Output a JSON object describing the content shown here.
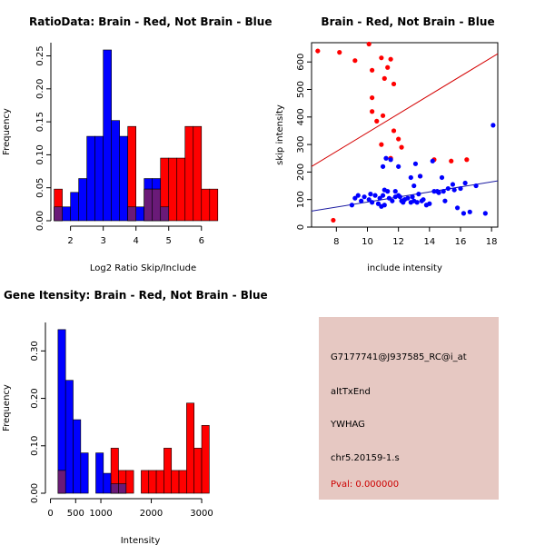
{
  "colors": {
    "red": "#ff0000",
    "blue": "#0000ff",
    "overlap": "#6a1a78",
    "panel_bg": "#e6c8c2",
    "pval": "#cc0000",
    "line_red": "#d40000",
    "line_blue": "#1a1aa0"
  },
  "chart_data": [
    {
      "id": "ratio",
      "type": "histogram",
      "title": "RatioData: Brain - Red, Not Brain - Blue",
      "xlabel": "Log2 Ratio Skip/Include",
      "ylabel": "Frequency",
      "xlim": [
        1.4,
        6.7
      ],
      "ylim": [
        0,
        0.27
      ],
      "x_ticks": [
        2,
        3,
        4,
        5,
        6
      ],
      "y_ticks": [
        0.0,
        0.05,
        0.1,
        0.15,
        0.2,
        0.25
      ],
      "y_tick_labels": [
        "0.00",
        "0.05",
        "0.10",
        "0.15",
        "0.20",
        "0.25"
      ],
      "bin_width": 0.25,
      "series": [
        {
          "name": "Not Brain",
          "color": "blue",
          "bins": [
            [
              1.5,
              0.021
            ],
            [
              1.75,
              0.021
            ],
            [
              2.0,
              0.043
            ],
            [
              2.25,
              0.064
            ],
            [
              2.5,
              0.128
            ],
            [
              2.75,
              0.128
            ],
            [
              3.0,
              0.259
            ],
            [
              3.25,
              0.152
            ],
            [
              3.5,
              0.128
            ],
            [
              3.75,
              0.021
            ],
            [
              4.0,
              0.021
            ],
            [
              4.25,
              0.064
            ],
            [
              4.5,
              0.064
            ],
            [
              4.75,
              0.021
            ]
          ]
        },
        {
          "name": "Brain",
          "color": "red",
          "bins": [
            [
              1.5,
              0.048
            ],
            [
              3.75,
              0.143
            ],
            [
              4.25,
              0.048
            ],
            [
              4.5,
              0.048
            ],
            [
              4.75,
              0.095
            ],
            [
              5.0,
              0.095
            ],
            [
              5.25,
              0.095
            ],
            [
              5.5,
              0.143
            ],
            [
              5.75,
              0.143
            ],
            [
              6.0,
              0.048
            ],
            [
              6.25,
              0.048
            ]
          ]
        }
      ]
    },
    {
      "id": "scatter",
      "type": "scatter",
      "title": "Brain - Red, Not Brain - Blue",
      "xlabel": "include intensity",
      "ylabel": "skip intensity",
      "xlim": [
        6.4,
        18.4
      ],
      "ylim": [
        0,
        670
      ],
      "x_ticks": [
        8,
        10,
        12,
        14,
        16,
        18
      ],
      "y_ticks": [
        0,
        100,
        200,
        300,
        400,
        500,
        600
      ],
      "series": [
        {
          "name": "Brain",
          "color": "red",
          "points": [
            [
              6.8,
              640
            ],
            [
              8.2,
              635
            ],
            [
              9.2,
              605
            ],
            [
              10.1,
              665
            ],
            [
              10.3,
              570
            ],
            [
              10.9,
              615
            ],
            [
              11.5,
              610
            ],
            [
              11.3,
              580
            ],
            [
              11.7,
              520
            ],
            [
              10.3,
              470
            ],
            [
              10.3,
              420
            ],
            [
              11.0,
              405
            ],
            [
              10.6,
              385
            ],
            [
              11.1,
              540
            ],
            [
              11.7,
              350
            ],
            [
              12.0,
              320
            ],
            [
              12.2,
              290
            ],
            [
              10.9,
              300
            ],
            [
              13.4,
              185
            ],
            [
              14.3,
              245
            ],
            [
              15.4,
              240
            ],
            [
              16.4,
              245
            ],
            [
              7.8,
              25
            ],
            [
              11.5,
              250
            ]
          ]
        },
        {
          "name": "Not Brain",
          "color": "blue",
          "points": [
            [
              9.0,
              80
            ],
            [
              9.2,
              105
            ],
            [
              9.6,
              95
            ],
            [
              9.8,
              110
            ],
            [
              10.1,
              100
            ],
            [
              10.3,
              90
            ],
            [
              10.5,
              115
            ],
            [
              10.7,
              85
            ],
            [
              10.9,
              75
            ],
            [
              11.1,
              80
            ],
            [
              11.3,
              130
            ],
            [
              11.4,
              105
            ],
            [
              11.6,
              95
            ],
            [
              11.8,
              110
            ],
            [
              12.0,
              115
            ],
            [
              12.2,
              95
            ],
            [
              12.4,
              100
            ],
            [
              12.6,
              105
            ],
            [
              12.8,
              90
            ],
            [
              13.0,
              95
            ],
            [
              13.2,
              90
            ],
            [
              13.5,
              95
            ],
            [
              13.8,
              80
            ],
            [
              14.0,
              85
            ],
            [
              14.3,
              130
            ],
            [
              14.6,
              125
            ],
            [
              14.9,
              130
            ],
            [
              15.2,
              140
            ],
            [
              15.5,
              155
            ],
            [
              15.8,
              70
            ],
            [
              16.2,
              50
            ],
            [
              16.6,
              55
            ],
            [
              17.0,
              150
            ],
            [
              17.6,
              50
            ],
            [
              18.1,
              370
            ],
            [
              11.0,
              220
            ],
            [
              11.2,
              250
            ],
            [
              11.5,
              245
            ],
            [
              12.0,
              220
            ],
            [
              12.8,
              180
            ],
            [
              13.1,
              230
            ],
            [
              13.4,
              185
            ],
            [
              14.2,
              240
            ],
            [
              14.8,
              180
            ],
            [
              12.1,
              110
            ],
            [
              11.8,
              130
            ],
            [
              11.0,
              115
            ],
            [
              10.2,
              120
            ],
            [
              12.9,
              110
            ],
            [
              13.6,
              100
            ],
            [
              14.5,
              130
            ],
            [
              15.6,
              135
            ],
            [
              16.3,
              160
            ],
            [
              9.4,
              115
            ],
            [
              10.8,
              105
            ],
            [
              11.1,
              135
            ],
            [
              12.4,
              100
            ],
            [
              13.0,
              150
            ],
            [
              13.3,
              120
            ],
            [
              15.0,
              95
            ],
            [
              16.0,
              140
            ],
            [
              12.3,
              90
            ]
          ]
        }
      ],
      "fit_lines": [
        {
          "name": "Brain",
          "color": "line_red",
          "x1": 6.4,
          "y1": 220,
          "x2": 18.4,
          "y2": 630
        },
        {
          "name": "Not Brain",
          "color": "line_blue",
          "x1": 6.4,
          "y1": 58,
          "x2": 18.4,
          "y2": 168
        }
      ]
    },
    {
      "id": "intensity",
      "type": "histogram",
      "title": "Gene Itensity: Brain - Red, Not Brain - Blue",
      "xlabel": "Intensity",
      "ylabel": "Frequency",
      "xlim": [
        -100,
        3450
      ],
      "ylim": [
        0,
        0.36
      ],
      "x_ticks": [
        0,
        500,
        1000,
        2000,
        3000
      ],
      "y_ticks": [
        0.0,
        0.1,
        0.2,
        0.3
      ],
      "y_tick_labels": [
        "0.00",
        "0.10",
        "0.20",
        "0.30"
      ],
      "bin_width": 150,
      "series": [
        {
          "name": "Not Brain",
          "color": "blue",
          "bins": [
            [
              150,
              0.345
            ],
            [
              300,
              0.238
            ],
            [
              450,
              0.155
            ],
            [
              600,
              0.085
            ],
            [
              900,
              0.085
            ],
            [
              1050,
              0.042
            ],
            [
              1200,
              0.02
            ],
            [
              1350,
              0.02
            ]
          ]
        },
        {
          "name": "Brain",
          "color": "red",
          "bins": [
            [
              150,
              0.048
            ],
            [
              1200,
              0.095
            ],
            [
              1350,
              0.048
            ],
            [
              1500,
              0.048
            ],
            [
              1800,
              0.048
            ],
            [
              1950,
              0.048
            ],
            [
              2100,
              0.048
            ],
            [
              2250,
              0.095
            ],
            [
              2400,
              0.048
            ],
            [
              2550,
              0.048
            ],
            [
              2700,
              0.19
            ],
            [
              2850,
              0.095
            ],
            [
              3000,
              0.143
            ]
          ]
        }
      ]
    }
  ],
  "info_panel": {
    "probe_id": "G7177741@J937585_RC@i_at",
    "event_type": "altTxEnd",
    "gene_symbol": "YWHAG",
    "locus": "chr5.20159-1.s",
    "pval": "Pval: 0.000000"
  }
}
